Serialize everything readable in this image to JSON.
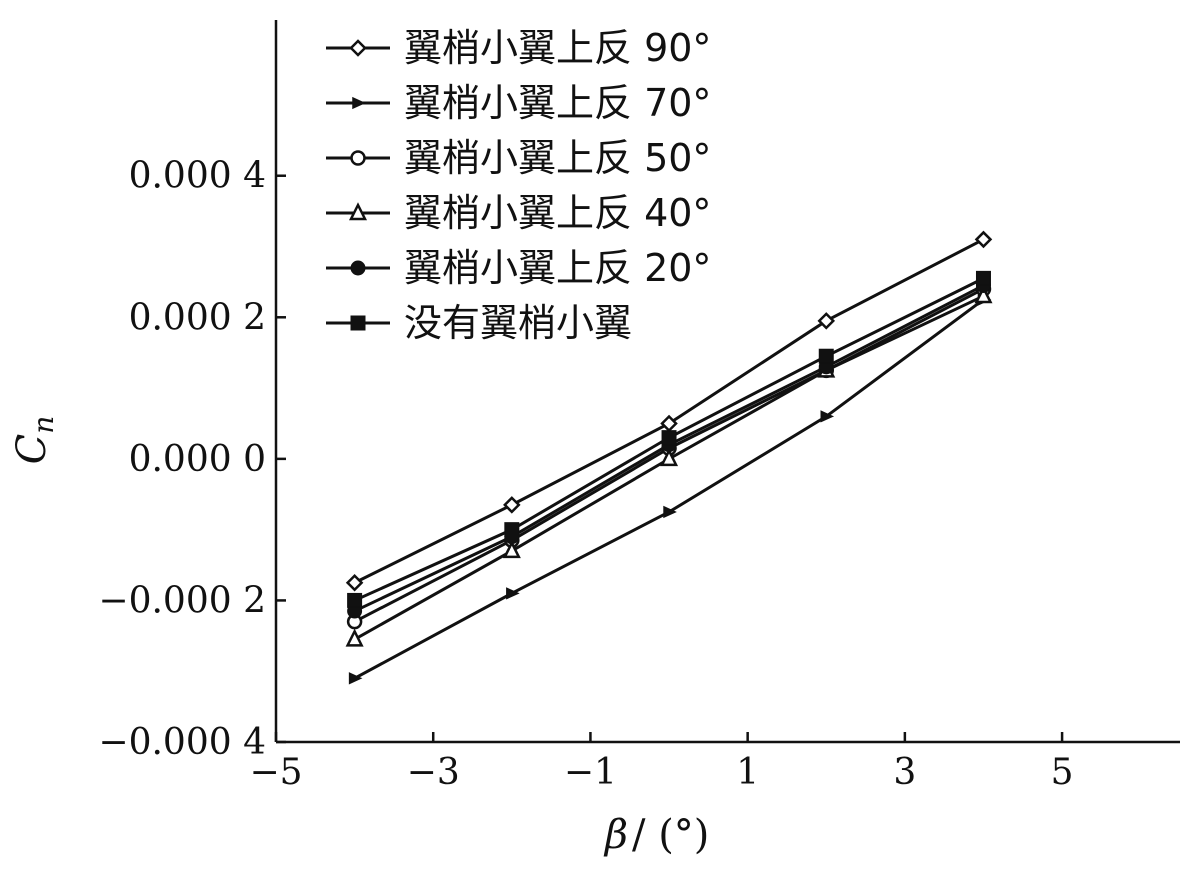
{
  "chart_data": {
    "type": "line",
    "xlabel": {
      "symbol": "β",
      "unit": "/ (°)"
    },
    "ylabel": {
      "symbol": "C",
      "subscript": "n"
    },
    "xlim": [
      -5,
      6.5
    ],
    "ylim": [
      -0.0004,
      0.00062
    ],
    "xticks": [
      -5,
      -3,
      -1,
      1,
      3,
      5
    ],
    "xtick_labels": [
      "−5",
      "−3",
      "−1",
      "1",
      "3",
      "5"
    ],
    "yticks": [
      -0.0004,
      -0.0002,
      0.0,
      0.0002,
      0.0004
    ],
    "ytick_labels": [
      "−0.000 4",
      "−0.000 2",
      "0.000 0",
      "0.000 2",
      "0.000 4"
    ],
    "legend_position": "top-left",
    "series": [
      {
        "name": "翼梢小翼上反 90°",
        "marker": "diamond-open",
        "x": [
          -4,
          -2,
          0,
          2,
          4
        ],
        "y": [
          -0.000175,
          -6.5e-05,
          5e-05,
          0.000195,
          0.00031
        ]
      },
      {
        "name": "翼梢小翼上反 70°",
        "marker": "tri-small",
        "x": [
          -4,
          -2,
          0,
          2,
          4
        ],
        "y": [
          -0.00031,
          -0.00019,
          -7.5e-05,
          6e-05,
          0.000225
        ]
      },
      {
        "name": "翼梢小翼上反 50°",
        "marker": "circle-open",
        "x": [
          -4,
          -2,
          0,
          2,
          4
        ],
        "y": [
          -0.00023,
          -0.000115,
          1.5e-05,
          0.000125,
          0.00024
        ]
      },
      {
        "name": "翼梢小翼上反 40°",
        "marker": "triangle-open",
        "x": [
          -4,
          -2,
          0,
          2,
          4
        ],
        "y": [
          -0.000255,
          -0.00013,
          0.0,
          0.000125,
          0.00023
        ]
      },
      {
        "name": "翼梢小翼上反 20°",
        "marker": "circle-filled",
        "x": [
          -4,
          -2,
          0,
          2,
          4
        ],
        "y": [
          -0.000215,
          -0.00011,
          2e-05,
          0.00013,
          0.000245
        ]
      },
      {
        "name": "没有翼梢小翼",
        "marker": "square-filled",
        "x": [
          -4,
          -2,
          0,
          2,
          4
        ],
        "y": [
          -0.0002,
          -0.0001,
          3e-05,
          0.000145,
          0.000255
        ]
      }
    ]
  }
}
